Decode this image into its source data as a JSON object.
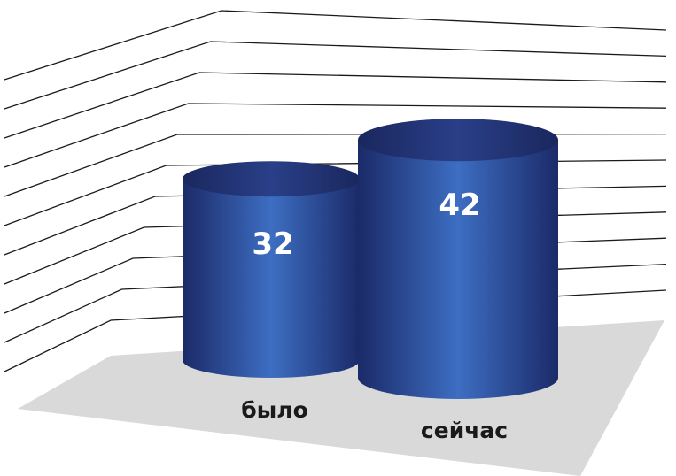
{
  "chart_data": {
    "type": "bar",
    "style": "3d-cylinder",
    "categories": [
      "было",
      "сейчас"
    ],
    "values": [
      32,
      42
    ],
    "title": "",
    "xlabel": "",
    "ylabel": "",
    "ylim": [
      0,
      50
    ],
    "grid": true,
    "legend": "none",
    "colors": {
      "bar_dark": "#1b2a68",
      "bar_mid": "#2f58a8",
      "bar_light": "#3d6ec2",
      "top_dark": "#1f3273",
      "floor": "#d9d9d9",
      "grid": "#1a1a1a",
      "value_text": "#ffffff",
      "category_text": "#1a1a1a"
    }
  }
}
